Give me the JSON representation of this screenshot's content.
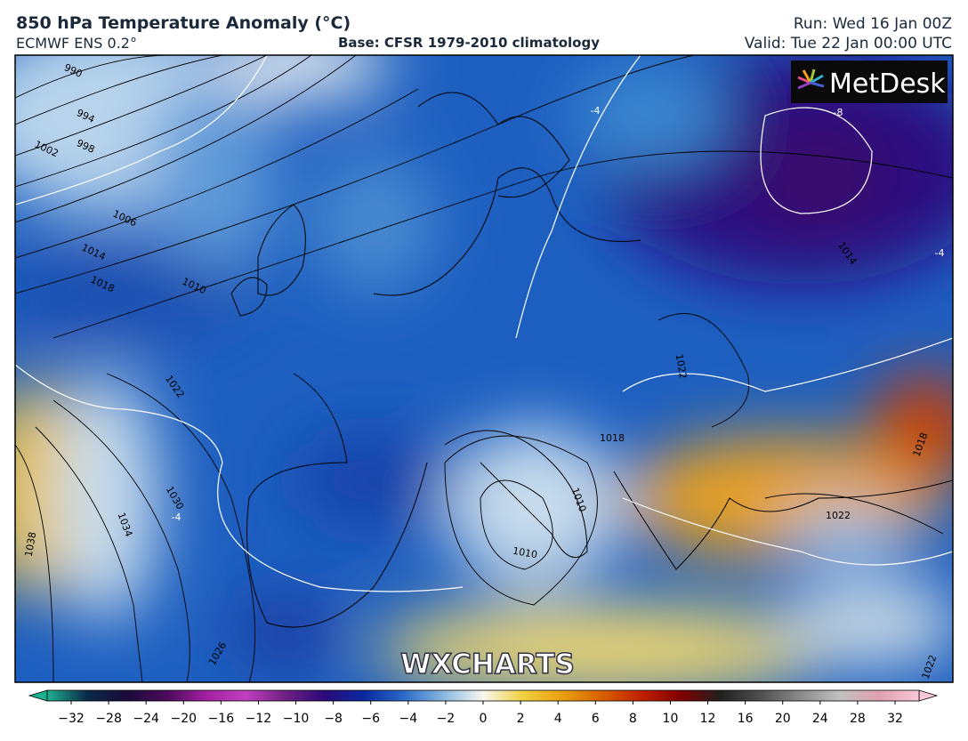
{
  "header": {
    "title": "850 hPa Temperature Anomaly (°C)",
    "model": "ECMWF ENS 0.2°",
    "base": "Base: CFSR 1979-2010 climatology",
    "run": "Run: Wed 16 Jan 00Z",
    "valid": "Valid: Tue 22 Jan 00:00 UTC"
  },
  "logo": "MetDesk",
  "watermark": "WXCHARTS",
  "isobar_labels": [
    990,
    994,
    998,
    1002,
    1006,
    1014,
    1018,
    1010,
    1022,
    1030,
    1034,
    1038,
    1026,
    1010,
    1010,
    1018,
    1014,
    1022,
    1022,
    1018,
    1022
  ],
  "anomaly_labels": [
    -8,
    -4,
    -4,
    -4
  ],
  "colorbar": {
    "ticks": [
      {
        "value": -32,
        "label": "−32"
      },
      {
        "value": -28,
        "label": "−28"
      },
      {
        "value": -24,
        "label": "−24"
      },
      {
        "value": -20,
        "label": "−20"
      },
      {
        "value": -16,
        "label": "−16"
      },
      {
        "value": -12,
        "label": "−12"
      },
      {
        "value": -10,
        "label": "−10"
      },
      {
        "value": -8,
        "label": "−8"
      },
      {
        "value": -6,
        "label": "−6"
      },
      {
        "value": -4,
        "label": "−4"
      },
      {
        "value": -2,
        "label": "−2"
      },
      0,
      2,
      4,
      6,
      8,
      10,
      12,
      16,
      20,
      24,
      28,
      32
    ],
    "colors": [
      "#1fb08f",
      "#0a2a4a",
      "#1a0a3a",
      "#4a0a5a",
      "#a020a0",
      "#c040c0",
      "#702080",
      "#2a0a7a",
      "#0a2aa0",
      "#2a6ac8",
      "#8ab8e0",
      "#f8f8f0",
      "#f0d040",
      "#e8a010",
      "#d86000",
      "#c02000",
      "#800000",
      "#202020",
      "#505050",
      "#8a8a8a",
      "#c0c0c0",
      "#e0a0b0",
      "#f8c8d8"
    ]
  }
}
